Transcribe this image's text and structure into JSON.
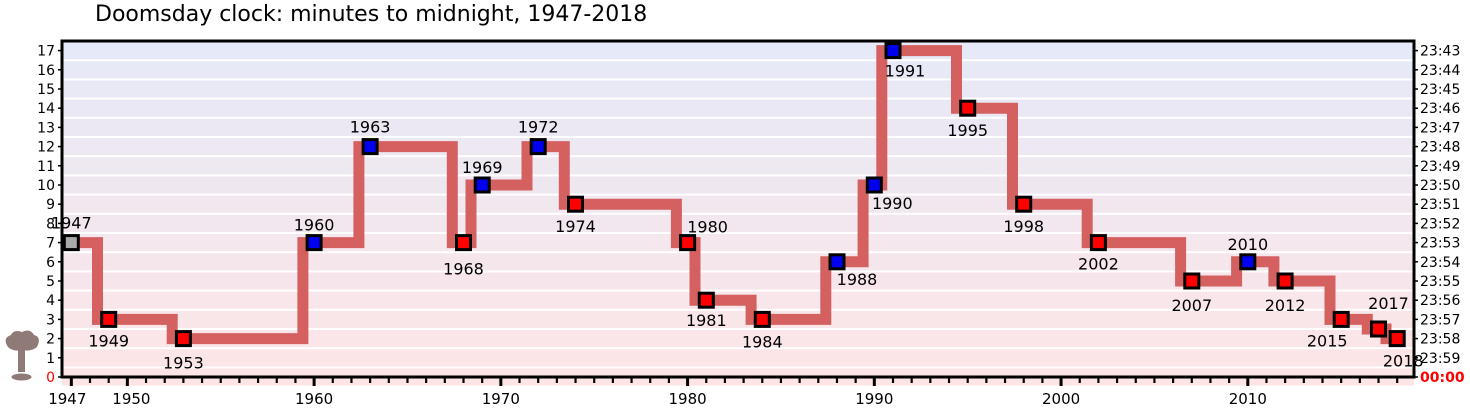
{
  "chart_data": {
    "type": "line",
    "title": "Doomsday clock: minutes to midnight, 1947-2018",
    "xlabel": "",
    "ylabel": "",
    "xlim": [
      1946.5,
      2018.9
    ],
    "ylim": [
      0,
      17.5
    ],
    "x_ticks": [
      1947,
      1950,
      1960,
      1970,
      1980,
      1990,
      2000,
      2010
    ],
    "x_minor_step": 1,
    "y_left_ticks": [
      "0",
      "1",
      "2",
      "3",
      "4",
      "5",
      "6",
      "7",
      "8",
      "9",
      "10",
      "11",
      "12",
      "13",
      "14",
      "15",
      "16",
      "17"
    ],
    "y_right_ticks": [
      "00:00",
      "23:59",
      "23:58",
      "23:57",
      "23:56",
      "23:55",
      "23:54",
      "23:53",
      "23:52",
      "23:51",
      "23:50",
      "23:49",
      "23:48",
      "23:47",
      "23:46",
      "23:45",
      "23:44",
      "23:43"
    ],
    "series": [
      {
        "points": [
          {
            "x": 1947,
            "y": 7,
            "label": "1947",
            "kind": "start"
          },
          {
            "x": 1949,
            "y": 3,
            "label": "1949",
            "kind": "worse"
          },
          {
            "x": 1953,
            "y": 2,
            "label": "1953",
            "kind": "worse"
          },
          {
            "x": 1960,
            "y": 7,
            "label": "1960",
            "kind": "better"
          },
          {
            "x": 1963,
            "y": 12,
            "label": "1963",
            "kind": "better"
          },
          {
            "x": 1968,
            "y": 7,
            "label": "1968",
            "kind": "worse"
          },
          {
            "x": 1969,
            "y": 10,
            "label": "1969",
            "kind": "better"
          },
          {
            "x": 1972,
            "y": 12,
            "label": "1972",
            "kind": "better"
          },
          {
            "x": 1974,
            "y": 9,
            "label": "1974",
            "kind": "worse"
          },
          {
            "x": 1980,
            "y": 7,
            "label": "1980",
            "kind": "worse"
          },
          {
            "x": 1981,
            "y": 4,
            "label": "1981",
            "kind": "worse"
          },
          {
            "x": 1984,
            "y": 3,
            "label": "1984",
            "kind": "worse"
          },
          {
            "x": 1988,
            "y": 6,
            "label": "1988",
            "kind": "better"
          },
          {
            "x": 1990,
            "y": 10,
            "label": "1990",
            "kind": "better"
          },
          {
            "x": 1991,
            "y": 17,
            "label": "1991",
            "kind": "better"
          },
          {
            "x": 1995,
            "y": 14,
            "label": "1995",
            "kind": "worse"
          },
          {
            "x": 1998,
            "y": 9,
            "label": "1998",
            "kind": "worse"
          },
          {
            "x": 2002,
            "y": 7,
            "label": "2002",
            "kind": "worse"
          },
          {
            "x": 2007,
            "y": 5,
            "label": "2007",
            "kind": "worse"
          },
          {
            "x": 2010,
            "y": 6,
            "label": "2010",
            "kind": "better"
          },
          {
            "x": 2012,
            "y": 5,
            "label": "2012",
            "kind": "worse"
          },
          {
            "x": 2015,
            "y": 3,
            "label": "2015",
            "kind": "worse"
          },
          {
            "x": 2017,
            "y": 2.5,
            "label": "2017",
            "kind": "worse"
          },
          {
            "x": 2018,
            "y": 2,
            "label": "2018",
            "kind": "worse"
          }
        ]
      }
    ],
    "grid": true,
    "legend": "none",
    "colors": {
      "line": "#d46060",
      "worse": "#ff0000",
      "better": "#0000ee",
      "start": "#aaaaaa",
      "midnight": "#ff0000",
      "band_top": "#e6e9f7",
      "band_bottom": "#fde5e6",
      "mushroom": "#8f7a78"
    },
    "icons": [
      "mushroom-cloud-icon"
    ]
  }
}
